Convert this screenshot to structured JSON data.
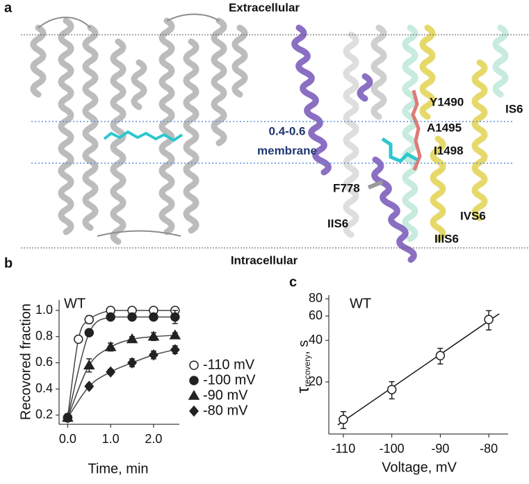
{
  "panel_a": {
    "label": "a",
    "extracellular": "Extracellular",
    "intracellular": "Intracellular",
    "membrane_fraction": "0.4-0.6",
    "membrane": "membrane",
    "residue_labels": [
      "Y1490",
      "A1495",
      "I1498",
      "F778"
    ],
    "segment_labels": [
      "IS6",
      "IVS6",
      "IIS6",
      "IIIS6"
    ]
  },
  "chart_data": [
    {
      "type": "line",
      "panel_label": "b",
      "annotation": "WT",
      "x_label": "Time, min",
      "y_label": "Recovored fraction",
      "xlim": [
        -0.2,
        2.6
      ],
      "xticks": [
        {
          "value": 0,
          "label": "0.0"
        },
        {
          "value": 1,
          "label": "1.0"
        },
        {
          "value": 2,
          "label": "2.0"
        }
      ],
      "ylim": [
        0.13,
        1.08
      ],
      "yticks": [
        0.2,
        0.4,
        0.6,
        0.8,
        {
          "value": 1,
          "label": "1.0"
        }
      ],
      "series": [
        {
          "name": "-110 mV",
          "marker": "circle-open",
          "color": "#222222",
          "x": [
            0,
            0.25,
            0.5,
            1,
            1.5,
            2,
            2.5
          ],
          "values": [
            0.18,
            0.78,
            0.93,
            1.0,
            1.0,
            1.0,
            1.0
          ],
          "errors": [
            0.03,
            0.01,
            0.03,
            0.01,
            0.01,
            0.01,
            0.01
          ]
        },
        {
          "name": "-100 mV",
          "marker": "circle",
          "color": "#222222",
          "x": [
            0,
            0.5,
            1,
            1.5,
            2,
            2.5
          ],
          "values": [
            0.18,
            0.83,
            0.95,
            0.95,
            0.95,
            0.95
          ],
          "errors": [
            0.03,
            0.02,
            0.02,
            0.02,
            0.02,
            0.05
          ]
        },
        {
          "name": "-90 mV",
          "marker": "triangle",
          "color": "#222222",
          "x": [
            0,
            0.5,
            1,
            1.5,
            2,
            2.5
          ],
          "values": [
            0.18,
            0.58,
            0.72,
            0.78,
            0.8,
            0.81
          ],
          "errors": [
            0.03,
            0.05,
            0.03,
            0.02,
            0.03,
            0.02
          ]
        },
        {
          "name": "-80 mV",
          "marker": "diamond",
          "color": "#222222",
          "x": [
            0,
            0.5,
            1,
            1.5,
            2,
            2.5
          ],
          "values": [
            0.18,
            0.42,
            0.53,
            0.6,
            0.66,
            0.7
          ],
          "errors": [
            0.03,
            0.02,
            0.02,
            0.03,
            0.03,
            0.03
          ]
        }
      ]
    },
    {
      "type": "scatter",
      "panel_label": "c",
      "annotation": "WT",
      "x_label": "Voltage, mV",
      "y_label_parts": [
        "τ",
        "recovery",
        ", s"
      ],
      "log_y": true,
      "fit_line": true,
      "xlim": [
        -113,
        -76
      ],
      "xticks": [
        -110,
        -100,
        -90,
        -80
      ],
      "ylim": [
        8.4,
        85
      ],
      "yticks": [
        20,
        40,
        60,
        80
      ],
      "x": [
        -110,
        -100,
        -90,
        -80
      ],
      "values": [
        10.7,
        17.6,
        31,
        56.6
      ],
      "errors": [
        1.5,
        2.5,
        4,
        9
      ],
      "marker": "circle-open",
      "color": "#222222"
    }
  ]
}
